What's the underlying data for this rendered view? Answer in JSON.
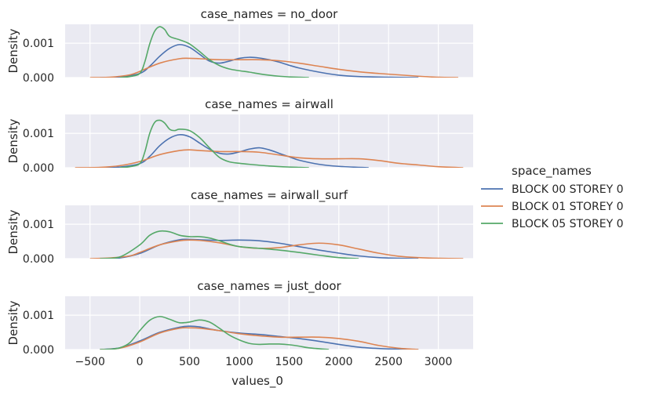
{
  "chart_data": {
    "type": "line",
    "subtype": "kde",
    "xlabel": "values_0",
    "ylabel": "Density",
    "xlim": [
      -750,
      3350
    ],
    "ylim": [
      0,
      0.00155
    ],
    "x_ticks": [
      -500,
      0,
      500,
      1000,
      1500,
      2000,
      2500,
      3000
    ],
    "x_tick_labels": [
      "−500",
      "0",
      "500",
      "1000",
      "1500",
      "2000",
      "2500",
      "3000"
    ],
    "y_ticks": [
      0,
      0.001
    ],
    "y_tick_labels": [
      "0.000",
      "0.001"
    ],
    "grid": true,
    "legend": {
      "title": "space_names",
      "placement": "right",
      "entries": [
        "BLOCK 00 STOREY 0",
        "BLOCK 01 STOREY 0",
        "BLOCK 05 STOREY 0"
      ]
    },
    "colors": {
      "BLOCK 00 STOREY 0": "#4c72b0",
      "BLOCK 01 STOREY 0": "#dd8452",
      "BLOCK 05 STOREY 0": "#55a868"
    },
    "panels": [
      {
        "title": "case_names = no_door",
        "series": [
          {
            "name": "BLOCK 00 STOREY 0",
            "x": [
              -400,
              -200,
              0,
              100,
              200,
              300,
              400,
              500,
              600,
              700,
              800,
              900,
              1000,
              1100,
              1200,
              1300,
              1400,
              1500,
              1600,
              1800,
              2000,
              2200,
              2500,
              2800
            ],
            "y": [
              0,
              2e-05,
              0.00012,
              0.00033,
              0.00062,
              0.00085,
              0.00096,
              0.00088,
              0.00068,
              0.00048,
              0.00042,
              0.00048,
              0.00056,
              0.00059,
              0.00057,
              0.00052,
              0.00045,
              0.00036,
              0.00028,
              0.00016,
              7e-05,
              3e-05,
              1e-05,
              0
            ]
          },
          {
            "name": "BLOCK 01 STOREY 0",
            "x": [
              -500,
              -300,
              -100,
              0,
              200,
              400,
              500,
              600,
              800,
              1000,
              1200,
              1400,
              1600,
              1800,
              2000,
              2200,
              2400,
              2600,
              2800,
              3000,
              3200
            ],
            "y": [
              0,
              1e-05,
              8e-05,
              0.00018,
              0.00042,
              0.00055,
              0.00056,
              0.00055,
              0.00052,
              0.00052,
              0.00052,
              0.00049,
              0.00042,
              0.00033,
              0.00024,
              0.00017,
              0.00012,
              8e-05,
              4e-05,
              1e-05,
              0
            ]
          },
          {
            "name": "BLOCK 05 STOREY 0",
            "x": [
              -200,
              -100,
              0,
              50,
              100,
              150,
              200,
              250,
              300,
              400,
              500,
              600,
              700,
              800,
              900,
              1000,
              1100,
              1200,
              1300,
              1400,
              1500,
              1700
            ],
            "y": [
              0,
              3e-05,
              0.00012,
              0.00045,
              0.00098,
              0.00135,
              0.00148,
              0.0014,
              0.0012,
              0.0011,
              0.00098,
              0.00076,
              0.00052,
              0.00035,
              0.00025,
              0.0002,
              0.00016,
              0.00011,
              7e-05,
              4e-05,
              2e-05,
              0
            ]
          }
        ]
      },
      {
        "title": "case_names = airwall",
        "series": [
          {
            "name": "BLOCK 00 STOREY 0",
            "x": [
              -400,
              -200,
              0,
              100,
              200,
              300,
              400,
              500,
              600,
              700,
              800,
              900,
              1000,
              1100,
              1200,
              1300,
              1400,
              1500,
              1600,
              1800,
              2000,
              2300
            ],
            "y": [
              0,
              2e-05,
              0.00012,
              0.00033,
              0.00064,
              0.00086,
              0.00096,
              0.0009,
              0.00072,
              0.00054,
              0.00042,
              0.0004,
              0.00046,
              0.00054,
              0.00058,
              0.00052,
              0.00042,
              0.00032,
              0.00022,
              0.0001,
              4e-05,
              0
            ]
          },
          {
            "name": "BLOCK 01 STOREY 0",
            "x": [
              -650,
              -400,
              -200,
              0,
              200,
              400,
              500,
              600,
              800,
              1000,
              1200,
              1400,
              1600,
              1800,
              2000,
              2200,
              2400,
              2600,
              2800,
              3000,
              3250
            ],
            "y": [
              0,
              1e-05,
              6e-05,
              0.00018,
              0.00038,
              0.0005,
              0.00052,
              0.0005,
              0.00047,
              0.00047,
              0.00045,
              0.00037,
              0.00029,
              0.00026,
              0.00026,
              0.00026,
              0.00021,
              0.00013,
              8e-05,
              3e-05,
              0
            ]
          },
          {
            "name": "BLOCK 05 STOREY 0",
            "x": [
              -200,
              -100,
              0,
              50,
              100,
              150,
              200,
              250,
              300,
              350,
              400,
              500,
              600,
              700,
              800,
              900,
              1000,
              1100,
              1300,
              1500,
              1700
            ],
            "y": [
              0,
              3e-05,
              0.00012,
              0.00045,
              0.001,
              0.00132,
              0.00138,
              0.0013,
              0.00112,
              0.00108,
              0.00112,
              0.00108,
              0.00088,
              0.00058,
              0.0003,
              0.00017,
              0.00013,
              0.0001,
              5e-05,
              2e-05,
              0
            ]
          }
        ]
      },
      {
        "title": "case_names = airwall_surf",
        "series": [
          {
            "name": "BLOCK 00 STOREY 0",
            "x": [
              -400,
              -200,
              0,
              200,
              400,
              500,
              600,
              800,
              1000,
              1200,
              1400,
              1600,
              1800,
              2000,
              2200,
              2400,
              2600,
              2800
            ],
            "y": [
              0,
              2e-05,
              0.00015,
              0.0004,
              0.00055,
              0.00056,
              0.00055,
              0.00053,
              0.00054,
              0.00052,
              0.00045,
              0.00035,
              0.00025,
              0.00016,
              8e-05,
              3e-05,
              1e-05,
              0
            ]
          },
          {
            "name": "BLOCK 01 STOREY 0",
            "x": [
              -500,
              -300,
              -100,
              0,
              200,
              400,
              500,
              600,
              800,
              1000,
              1200,
              1400,
              1600,
              1800,
              2000,
              2200,
              2400,
              2600,
              2800,
              3000,
              3250
            ],
            "y": [
              0,
              2e-05,
              8e-05,
              0.00018,
              0.0004,
              0.00052,
              0.00054,
              0.00053,
              0.00046,
              0.00035,
              0.0003,
              0.00032,
              0.0004,
              0.00045,
              0.0004,
              0.00028,
              0.00016,
              7e-05,
              3e-05,
              1e-05,
              0
            ]
          },
          {
            "name": "BLOCK 05 STOREY 0",
            "x": [
              -400,
              -200,
              0,
              100,
              200,
              300,
              400,
              500,
              600,
              700,
              800,
              900,
              1000,
              1200,
              1400,
              1600,
              1800,
              2000,
              2200
            ],
            "y": [
              0,
              5e-05,
              0.0004,
              0.00068,
              0.0008,
              0.00078,
              0.00068,
              0.00064,
              0.00064,
              0.0006,
              0.00052,
              0.00042,
              0.00035,
              0.0003,
              0.00025,
              0.00018,
              0.0001,
              3e-05,
              0
            ]
          }
        ]
      },
      {
        "title": "case_names = just_door",
        "series": [
          {
            "name": "BLOCK 00 STOREY 0",
            "x": [
              -400,
              -200,
              0,
              200,
              400,
              500,
              600,
              700,
              800,
              1000,
              1200,
              1400,
              1600,
              1800,
              2000,
              2200,
              2400,
              2600,
              2800
            ],
            "y": [
              0,
              5e-05,
              0.00025,
              0.0005,
              0.00065,
              0.00068,
              0.00066,
              0.0006,
              0.00055,
              0.00048,
              0.00044,
              0.00038,
              0.00032,
              0.00024,
              0.00015,
              7e-05,
              3e-05,
              1e-05,
              0
            ]
          },
          {
            "name": "BLOCK 01 STOREY 0",
            "x": [
              -400,
              -200,
              0,
              200,
              400,
              500,
              600,
              800,
              1000,
              1200,
              1400,
              1600,
              1800,
              2000,
              2200,
              2400,
              2600,
              2800
            ],
            "y": [
              0,
              4e-05,
              0.00022,
              0.00048,
              0.00062,
              0.00063,
              0.00062,
              0.00055,
              0.00046,
              0.0004,
              0.00036,
              0.00036,
              0.00036,
              0.00032,
              0.00024,
              0.00012,
              4e-05,
              0
            ]
          },
          {
            "name": "BLOCK 05 STOREY 0",
            "x": [
              -400,
              -300,
              -200,
              -100,
              0,
              100,
              200,
              300,
              400,
              500,
              600,
              700,
              800,
              900,
              1000,
              1100,
              1200,
              1300,
              1400,
              1500,
              1600,
              1700,
              1900
            ],
            "y": [
              0,
              1e-05,
              5e-05,
              0.0002,
              0.00055,
              0.00085,
              0.00096,
              0.00088,
              0.00078,
              0.0008,
              0.00086,
              0.0008,
              0.00062,
              0.00042,
              0.00028,
              0.00018,
              0.00015,
              0.00016,
              0.00016,
              0.00014,
              0.0001,
              5e-05,
              0
            ]
          }
        ]
      }
    ]
  }
}
